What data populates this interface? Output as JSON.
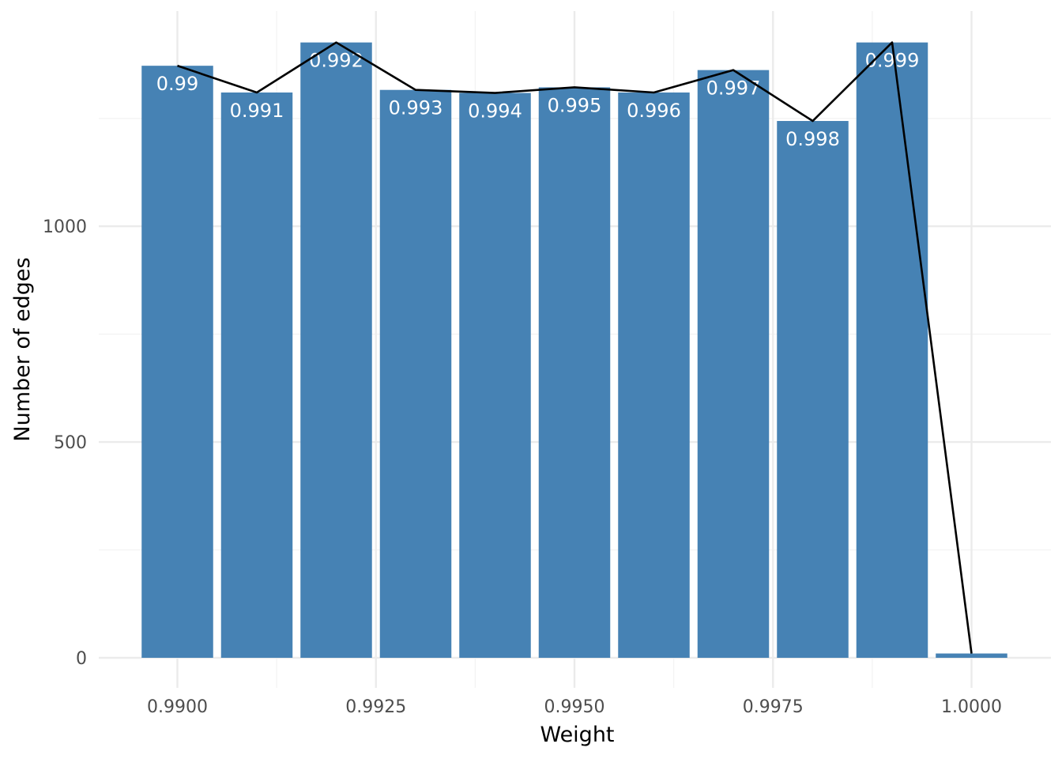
{
  "chart_data": {
    "type": "bar",
    "title": "",
    "xlabel": "Weight",
    "ylabel": "Number of edges",
    "x": [
      0.99,
      0.991,
      0.992,
      0.993,
      0.994,
      0.995,
      0.996,
      0.997,
      0.998,
      0.999,
      1.0
    ],
    "values": [
      1372,
      1310,
      1426,
      1316,
      1309,
      1322,
      1310,
      1362,
      1244,
      1426,
      10
    ],
    "bar_labels": [
      "0.99",
      "0.991",
      "0.992",
      "0.993",
      "0.994",
      "0.995",
      "0.996",
      "0.997",
      "0.998",
      "0.999",
      ""
    ],
    "line_overlay": {
      "x": [
        0.99,
        0.991,
        0.992,
        0.993,
        0.994,
        0.995,
        0.996,
        0.997,
        0.998,
        0.999,
        1.0
      ],
      "values": [
        1372,
        1310,
        1426,
        1316,
        1309,
        1322,
        1310,
        1362,
        1244,
        1426,
        10
      ]
    },
    "xlim": [
      0.989,
      1.001
    ],
    "ylim": [
      -40,
      1500
    ],
    "x_ticks": [
      0.99,
      0.9925,
      0.995,
      0.9975,
      1.0
    ],
    "x_tick_labels": [
      "0.9900",
      "0.9925",
      "0.9950",
      "0.9975",
      "1.0000"
    ],
    "y_ticks": [
      0,
      500,
      1000
    ],
    "y_tick_labels": [
      "0",
      "500",
      "1000"
    ],
    "y_minor_ticks": [
      250,
      750,
      1250
    ],
    "x_minor_ticks": [
      0.99125,
      0.99375,
      0.99625,
      0.99875
    ],
    "grid": true,
    "legend": "none",
    "colors": {
      "bar": "#4682B4",
      "line": "#000000",
      "grid_major": "#EBEBEB",
      "grid_minor": "#F3F3F3",
      "text": "#4D4D4D"
    }
  }
}
